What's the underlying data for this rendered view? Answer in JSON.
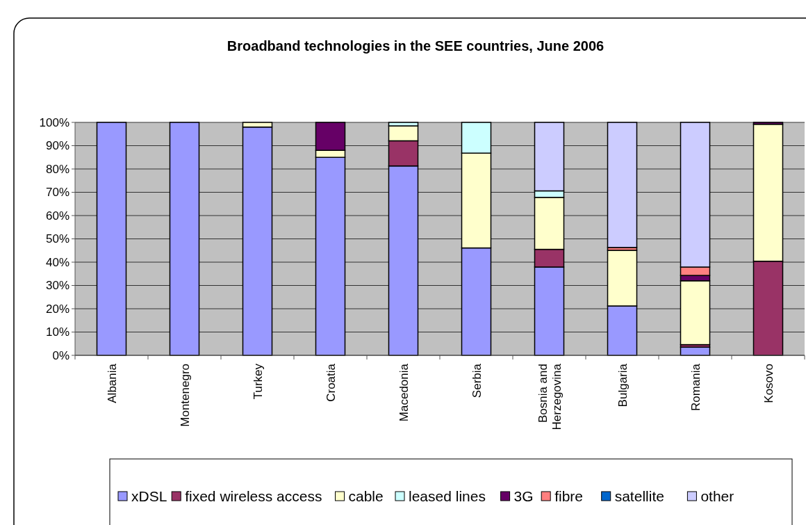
{
  "chart_data": {
    "type": "bar",
    "stacked": true,
    "title": "Broadband technologies in the SEE countries, June 2006",
    "categories": [
      "Albania",
      "Montenegro",
      "Turkey",
      "Croatia",
      "Macedonia",
      "Serbia",
      "Bosnia and Herzegovina",
      "Bulgaria",
      "Romania",
      "Kosovo"
    ],
    "series": [
      {
        "name": "xDSL",
        "color": "#9999ff",
        "values": [
          100,
          100,
          98,
          85,
          81.3,
          46.1,
          37.9,
          21.2,
          3.5,
          0
        ]
      },
      {
        "name": "fixed wireless access",
        "color": "#993366",
        "values": [
          0,
          0,
          0,
          0,
          10.8,
          0,
          7.6,
          0,
          1.1,
          40.4
        ]
      },
      {
        "name": "cable",
        "color": "#ffffcc",
        "values": [
          0,
          0,
          2,
          3,
          6.4,
          40.7,
          22.3,
          23.9,
          27.4,
          58.8
        ]
      },
      {
        "name": "leased lines",
        "color": "#ccffff",
        "values": [
          0,
          0,
          0,
          0,
          1.5,
          13.2,
          2.8,
          0,
          0,
          0
        ]
      },
      {
        "name": "3G",
        "color": "#660066",
        "values": [
          0,
          0,
          0,
          12,
          0,
          0,
          0,
          0,
          2.3,
          0.8
        ]
      },
      {
        "name": "fibre",
        "color": "#ff8080",
        "values": [
          0,
          0,
          0,
          0,
          0,
          0,
          0,
          1.2,
          3.6,
          0
        ]
      },
      {
        "name": "satellite",
        "color": "#0066cc",
        "values": [
          0,
          0,
          0,
          0,
          0,
          0,
          0,
          0,
          0,
          0
        ]
      },
      {
        "name": "other",
        "color": "#ccccff",
        "values": [
          0,
          0,
          0,
          0,
          0,
          0,
          29.4,
          53.7,
          62.1,
          0
        ]
      }
    ],
    "ylim": [
      0,
      100
    ],
    "yticks": [
      {
        "value": 0,
        "label": "0%"
      },
      {
        "value": 10,
        "label": "10%"
      },
      {
        "value": 20,
        "label": "20%"
      },
      {
        "value": 30,
        "label": "30%"
      },
      {
        "value": 40,
        "label": "40%"
      },
      {
        "value": 50,
        "label": "50%"
      },
      {
        "value": 60,
        "label": "60%"
      },
      {
        "value": 70,
        "label": "70%"
      },
      {
        "value": 80,
        "label": "80%"
      },
      {
        "value": 90,
        "label": "90%"
      },
      {
        "value": 100,
        "label": "100%"
      }
    ],
    "grid": "y",
    "legend": "bottom"
  }
}
